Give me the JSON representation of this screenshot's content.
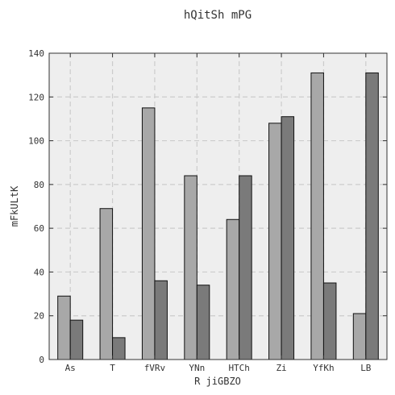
{
  "chart_data": {
    "type": "bar",
    "title": "hQitSh mPG",
    "xlabel": "R jiGBZO",
    "ylabel": "mFkULtK",
    "categories": [
      "As",
      "T",
      "fVRv",
      "YNn",
      "HTCh",
      "Zi",
      "YfKh",
      "LB"
    ],
    "series": [
      {
        "values": [
          29,
          69,
          115,
          84,
          64,
          108,
          131,
          21
        ],
        "color": "#a8a8a8"
      },
      {
        "values": [
          18,
          10,
          36,
          34,
          84,
          111,
          35,
          131
        ],
        "color": "#7a7a7a"
      }
    ],
    "ylim": [
      0,
      140
    ],
    "yticks": [
      0,
      20,
      40,
      60,
      80,
      100,
      120,
      140
    ],
    "grid": true,
    "plot_background": "#eeeeee",
    "grid_color": "#cccccc"
  }
}
